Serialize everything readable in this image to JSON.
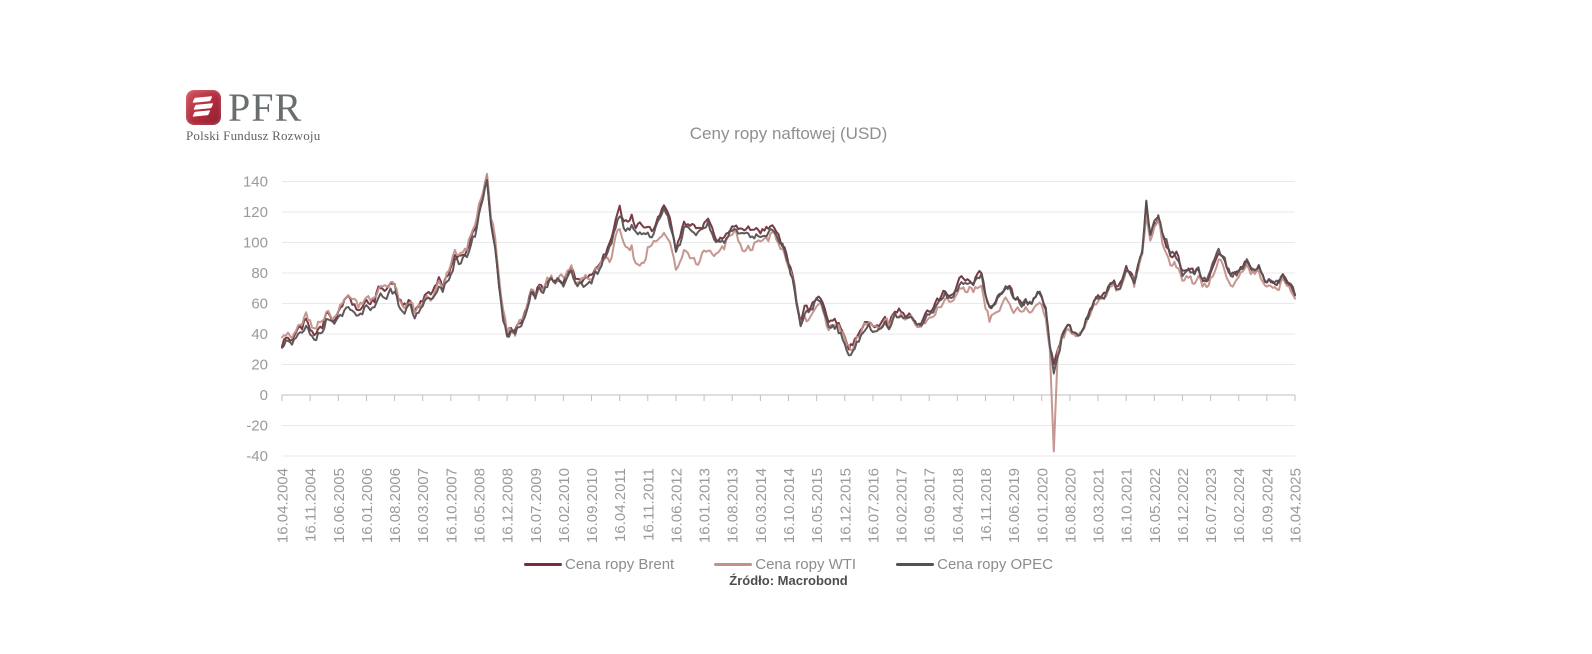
{
  "logo": {
    "text": "PFR",
    "subtitle": "Polski Fundusz Rozwoju",
    "brand_color": "#B12B3C"
  },
  "chart_data": {
    "type": "line",
    "title": "Ceny ropy naftowej (USD)",
    "source": "Źródło: Macrobond",
    "grid": "horizontal",
    "legend_position": "bottom",
    "x_frequency": "monthly",
    "ylim": [
      -45,
      152
    ],
    "y_ticks": [
      140,
      120,
      100,
      80,
      60,
      40,
      20,
      0,
      -20,
      -40
    ],
    "x_tick_labels": [
      "16.04.2004",
      "16.11.2004",
      "16.06.2005",
      "16.01.2006",
      "16.08.2006",
      "16.03.2007",
      "16.10.2007",
      "16.05.2008",
      "16.12.2008",
      "16.07.2009",
      "16.02.2010",
      "16.09.2010",
      "16.04.2011",
      "16.11.2011",
      "16.06.2012",
      "16.01.2013",
      "16.08.2013",
      "16.03.2014",
      "16.10.2014",
      "16.05.2015",
      "16.12.2015",
      "16.07.2016",
      "16.02.2017",
      "16.09.2017",
      "16.04.2018",
      "16.11.2018",
      "16.06.2019",
      "16.01.2020",
      "16.08.2020",
      "16.03.2021",
      "16.10.2021",
      "16.05.2022",
      "16.12.2022",
      "16.07.2023",
      "16.02.2024",
      "16.09.2024",
      "16.04.2025"
    ],
    "x_ticks_every_n_points": 7,
    "series": [
      {
        "name": "Cena ropy Brent",
        "color": "#71303A",
        "values": [
          33,
          38,
          35,
          38,
          43,
          43,
          50,
          43,
          40,
          44,
          45,
          53,
          52,
          49,
          54,
          57,
          64,
          63,
          59,
          55,
          57,
          63,
          60,
          62,
          70,
          70,
          69,
          74,
          73,
          63,
          58,
          59,
          62,
          54,
          58,
          62,
          68,
          67,
          71,
          77,
          71,
          77,
          83,
          92,
          91,
          92,
          95,
          103,
          109,
          123,
          132,
          144,
          113,
          98,
          72,
          53,
          40,
          43,
          43,
          47,
          50,
          57,
          69,
          64,
          73,
          68,
          73,
          77,
          75,
          76,
          74,
          79,
          85,
          76,
          75,
          75,
          77,
          78,
          83,
          85,
          91,
          97,
          104,
          115,
          123,
          115,
          114,
          117,
          110,
          113,
          110,
          111,
          108,
          111,
          119,
          125,
          120,
          110,
          95,
          103,
          113,
          113,
          112,
          109,
          109,
          113,
          116,
          109,
          102,
          103,
          103,
          107,
          111,
          111,
          109,
          108,
          111,
          108,
          109,
          107,
          108,
          110,
          112,
          107,
          101,
          97,
          87,
          79,
          62,
          48,
          58,
          56,
          60,
          64,
          62,
          57,
          47,
          48,
          48,
          44,
          38,
          31,
          33,
          39,
          42,
          47,
          48,
          45,
          46,
          46,
          50,
          45,
          54,
          55,
          55,
          52,
          53,
          50,
          46,
          48,
          52,
          56,
          57,
          63,
          64,
          69,
          65,
          66,
          72,
          77,
          74,
          74,
          73,
          79,
          81,
          65,
          57,
          59,
          64,
          66,
          71,
          71,
          64,
          64,
          59,
          62,
          60,
          63,
          67,
          64,
          56,
          32,
          20,
          29,
          40,
          43,
          45,
          41,
          40,
          43,
          50,
          55,
          62,
          65,
          65,
          68,
          73,
          75,
          71,
          75,
          84,
          81,
          74,
          86,
          94,
          126,
          105,
          112,
          117,
          105,
          98,
          90,
          93,
          91,
          81,
          83,
          83,
          79,
          83,
          75,
          75,
          80,
          86,
          93,
          91,
          83,
          78,
          80,
          82,
          85,
          89,
          83,
          83,
          84,
          79,
          73,
          75,
          73,
          74,
          79,
          75,
          72,
          65
        ]
      },
      {
        "name": "Cena ropy WTI",
        "color": "#C3908A",
        "values": [
          37,
          40,
          38,
          40,
          45,
          46,
          53,
          48,
          43,
          47,
          48,
          54,
          53,
          50,
          56,
          59,
          65,
          65,
          62,
          58,
          59,
          65,
          62,
          63,
          70,
          71,
          71,
          74,
          73,
          64,
          59,
          59,
          62,
          54,
          59,
          61,
          64,
          63,
          68,
          74,
          72,
          80,
          86,
          95,
          92,
          93,
          95,
          105,
          112,
          125,
          134,
          145,
          117,
          104,
          76,
          57,
          42,
          42,
          39,
          48,
          50,
          59,
          70,
          64,
          71,
          69,
          76,
          78,
          74,
          78,
          76,
          81,
          84,
          74,
          75,
          76,
          77,
          75,
          82,
          84,
          89,
          89,
          89,
          103,
          110,
          101,
          96,
          97,
          86,
          86,
          86,
          97,
          99,
          100,
          102,
          106,
          103,
          94,
          82,
          88,
          94,
          94,
          89,
          87,
          88,
          95,
          95,
          93,
          92,
          95,
          96,
          105,
          106,
          106,
          100,
          94,
          98,
          95,
          101,
          101,
          102,
          102,
          106,
          103,
          96,
          93,
          84,
          76,
          59,
          47,
          51,
          48,
          54,
          59,
          60,
          51,
          43,
          45,
          46,
          43,
          37,
          32,
          30,
          38,
          41,
          46,
          49,
          45,
          45,
          45,
          50,
          46,
          52,
          52,
          53,
          50,
          51,
          49,
          45,
          46,
          48,
          50,
          52,
          57,
          58,
          64,
          62,
          63,
          66,
          70,
          67,
          71,
          68,
          70,
          71,
          57,
          49,
          52,
          55,
          58,
          64,
          61,
          55,
          57,
          55,
          57,
          54,
          57,
          60,
          58,
          50,
          30,
          -37,
          29,
          38,
          41,
          42,
          40,
          40,
          41,
          47,
          52,
          59,
          62,
          62,
          65,
          71,
          73,
          68,
          72,
          81,
          79,
          72,
          83,
          92,
          119,
          102,
          110,
          115,
          100,
          92,
          84,
          87,
          84,
          76,
          78,
          77,
          73,
          79,
          72,
          70,
          76,
          81,
          89,
          86,
          78,
          72,
          74,
          77,
          81,
          85,
          79,
          79,
          81,
          75,
          70,
          72,
          70,
          70,
          76,
          71,
          68,
          62
        ]
      },
      {
        "name": "Cena ropy OPEC",
        "color": "#565052",
        "values": [
          32,
          36,
          34,
          36,
          40,
          40,
          45,
          39,
          36,
          40,
          42,
          49,
          49,
          46,
          52,
          53,
          57,
          57,
          54,
          51,
          53,
          58,
          56,
          57,
          64,
          65,
          64,
          69,
          68,
          59,
          55,
          56,
          59,
          50,
          54,
          58,
          64,
          64,
          66,
          71,
          68,
          74,
          79,
          88,
          87,
          89,
          91,
          99,
          105,
          119,
          128,
          141,
          113,
          96,
          70,
          50,
          38,
          41,
          41,
          45,
          48,
          56,
          68,
          63,
          71,
          67,
          72,
          76,
          74,
          76,
          72,
          77,
          82,
          74,
          73,
          72,
          74,
          74,
          80,
          83,
          89,
          93,
          100,
          110,
          118,
          110,
          109,
          111,
          106,
          107,
          106,
          107,
          104,
          111,
          117,
          122,
          118,
          108,
          94,
          99,
          109,
          111,
          108,
          106,
          107,
          109,
          113,
          106,
          101,
          101,
          101,
          105,
          107,
          108,
          106,
          105,
          107,
          104,
          105,
          104,
          104,
          106,
          108,
          105,
          100,
          96,
          85,
          76,
          60,
          44,
          54,
          53,
          57,
          62,
          60,
          54,
          45,
          45,
          45,
          40,
          34,
          26,
          29,
          35,
          38,
          43,
          46,
          42,
          43,
          43,
          47,
          43,
          51,
          52,
          53,
          50,
          51,
          49,
          45,
          46,
          50,
          53,
          55,
          60,
          62,
          67,
          63,
          64,
          69,
          74,
          73,
          73,
          72,
          77,
          79,
          65,
          57,
          59,
          64,
          66,
          71,
          70,
          63,
          65,
          59,
          62,
          60,
          63,
          67,
          65,
          55,
          34,
          14,
          25,
          37,
          43,
          45,
          41,
          40,
          42,
          49,
          54,
          61,
          64,
          63,
          66,
          72,
          73,
          70,
          74,
          82,
          80,
          74,
          85,
          94,
          128,
          105,
          113,
          118,
          107,
          101,
          93,
          92,
          89,
          79,
          81,
          81,
          79,
          84,
          75,
          75,
          81,
          88,
          95,
          92,
          84,
          79,
          80,
          81,
          84,
          89,
          84,
          83,
          84,
          78,
          73,
          74,
          73,
          73,
          79,
          74,
          72,
          66
        ]
      }
    ]
  }
}
